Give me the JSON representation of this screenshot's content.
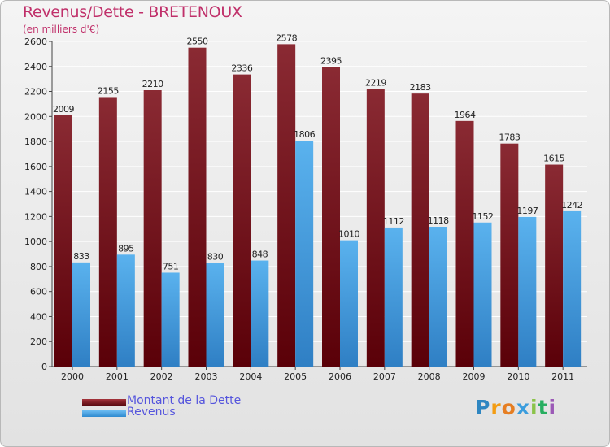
{
  "header": {
    "title": "Revenus/Dette - BRETENOUX",
    "subtitle": "(en milliers d'€)"
  },
  "legend": {
    "items": [
      {
        "label": "Montant de la Dette",
        "color": "#6b0f16"
      },
      {
        "label": "Revenus",
        "color": "#4aa3e6"
      }
    ]
  },
  "logo": {
    "text": "Proxiti",
    "letters": [
      "P",
      "r",
      "o",
      "x",
      "i",
      "t",
      "i"
    ],
    "colors": [
      "#2e86c1",
      "#f39c12",
      "#e67e22",
      "#3b9ddd",
      "#8bc34a",
      "#27ae60",
      "#9b59b6"
    ]
  },
  "chart_data": {
    "type": "bar",
    "title": "Revenus/Dette - BRETENOUX",
    "subtitle": "(en milliers d'€)",
    "categories": [
      "2000",
      "2001",
      "2002",
      "2003",
      "2004",
      "2005",
      "2006",
      "2007",
      "2008",
      "2009",
      "2010",
      "2011"
    ],
    "series": [
      {
        "name": "Montant de la Dette",
        "color": "#6b0f16",
        "values": [
          2009,
          2155,
          2210,
          2550,
          2336,
          2578,
          2395,
          2219,
          2183,
          1964,
          1783,
          1615
        ]
      },
      {
        "name": "Revenus",
        "color": "#4aa3e6",
        "values": [
          833,
          895,
          751,
          830,
          848,
          1806,
          1010,
          1112,
          1118,
          1152,
          1197,
          1242
        ]
      }
    ],
    "ylim": [
      0,
      2600
    ],
    "yticks": [
      0,
      200,
      400,
      600,
      800,
      1000,
      1200,
      1400,
      1600,
      1800,
      2000,
      2200,
      2400,
      2600
    ],
    "grid": true,
    "legend_position": "bottom-left"
  }
}
